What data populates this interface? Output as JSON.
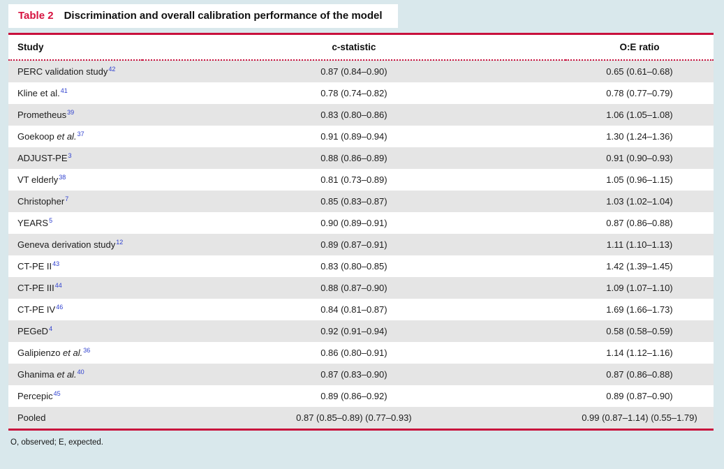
{
  "colors": {
    "page-bg": "#d9e8ec",
    "accent-red": "#c8103c",
    "label-red": "#d6123f",
    "row-gray": "#e5e5e5",
    "ref-blue": "#2f41cf"
  },
  "title": {
    "label": "Table 2",
    "text": "Discrimination and overall calibration performance of the model"
  },
  "table": {
    "columns": [
      "Study",
      "c-statistic",
      "O:E ratio"
    ],
    "rows": [
      {
        "study": "PERC validation study",
        "etal": "",
        "ref": "42",
        "c_statistic": "0.87 (0.84–0.90)",
        "oe_ratio": "0.65 (0.61–0.68)"
      },
      {
        "study": "Kline et al.",
        "etal": "",
        "ref": "41",
        "c_statistic": "0.78 (0.74–0.82)",
        "oe_ratio": "0.78 (0.77–0.79)"
      },
      {
        "study": "Prometheus",
        "etal": "",
        "ref": "39",
        "c_statistic": "0.83 (0.80–0.86)",
        "oe_ratio": "1.06 (1.05–1.08)"
      },
      {
        "study": "Goekoop ",
        "etal": "et al.",
        "ref": "37",
        "c_statistic": "0.91 (0.89–0.94)",
        "oe_ratio": "1.30 (1.24–1.36)"
      },
      {
        "study": "ADJUST-PE",
        "etal": "",
        "ref": "3",
        "c_statistic": "0.88 (0.86–0.89)",
        "oe_ratio": "0.91 (0.90–0.93)"
      },
      {
        "study": "VT elderly",
        "etal": "",
        "ref": "38",
        "c_statistic": "0.81 (0.73–0.89)",
        "oe_ratio": "1.05 (0.96–1.15)"
      },
      {
        "study": "Christopher",
        "etal": "",
        "ref": "7",
        "c_statistic": "0.85 (0.83–0.87)",
        "oe_ratio": "1.03 (1.02–1.04)"
      },
      {
        "study": "YEARS",
        "etal": "",
        "ref": "5",
        "c_statistic": "0.90 (0.89–0.91)",
        "oe_ratio": "0.87 (0.86–0.88)"
      },
      {
        "study": "Geneva derivation study",
        "etal": "",
        "ref": "12",
        "c_statistic": "0.89 (0.87–0.91)",
        "oe_ratio": "1.11 (1.10–1.13)"
      },
      {
        "study": "CT-PE II",
        "etal": "",
        "ref": "43",
        "c_statistic": "0.83 (0.80–0.85)",
        "oe_ratio": "1.42 (1.39–1.45)"
      },
      {
        "study": "CT-PE III",
        "etal": "",
        "ref": "44",
        "c_statistic": "0.88 (0.87–0.90)",
        "oe_ratio": "1.09 (1.07–1.10)"
      },
      {
        "study": "CT-PE IV",
        "etal": "",
        "ref": "46",
        "c_statistic": "0.84 (0.81–0.87)",
        "oe_ratio": "1.69 (1.66–1.73)"
      },
      {
        "study": "PEGeD",
        "etal": "",
        "ref": "4",
        "c_statistic": "0.92 (0.91–0.94)",
        "oe_ratio": "0.58 (0.58–0.59)"
      },
      {
        "study": "Galipienzo ",
        "etal": "et al.",
        "ref": "36",
        "c_statistic": "0.86 (0.80–0.91)",
        "oe_ratio": "1.14 (1.12–1.16)"
      },
      {
        "study": "Ghanima ",
        "etal": "et al.",
        "ref": "40",
        "c_statistic": "0.87 (0.83–0.90)",
        "oe_ratio": "0.87 (0.86–0.88)"
      },
      {
        "study": "Percepic",
        "etal": "",
        "ref": "45",
        "c_statistic": "0.89 (0.86–0.92)",
        "oe_ratio": "0.89 (0.87–0.90)"
      },
      {
        "study": "Pooled",
        "etal": "",
        "ref": "",
        "c_statistic": "0.87 (0.85–0.89) (0.77–0.93)",
        "oe_ratio": "0.99 (0.87–1.14) (0.55–1.79)"
      }
    ]
  },
  "footnote": "O, observed; E, expected."
}
